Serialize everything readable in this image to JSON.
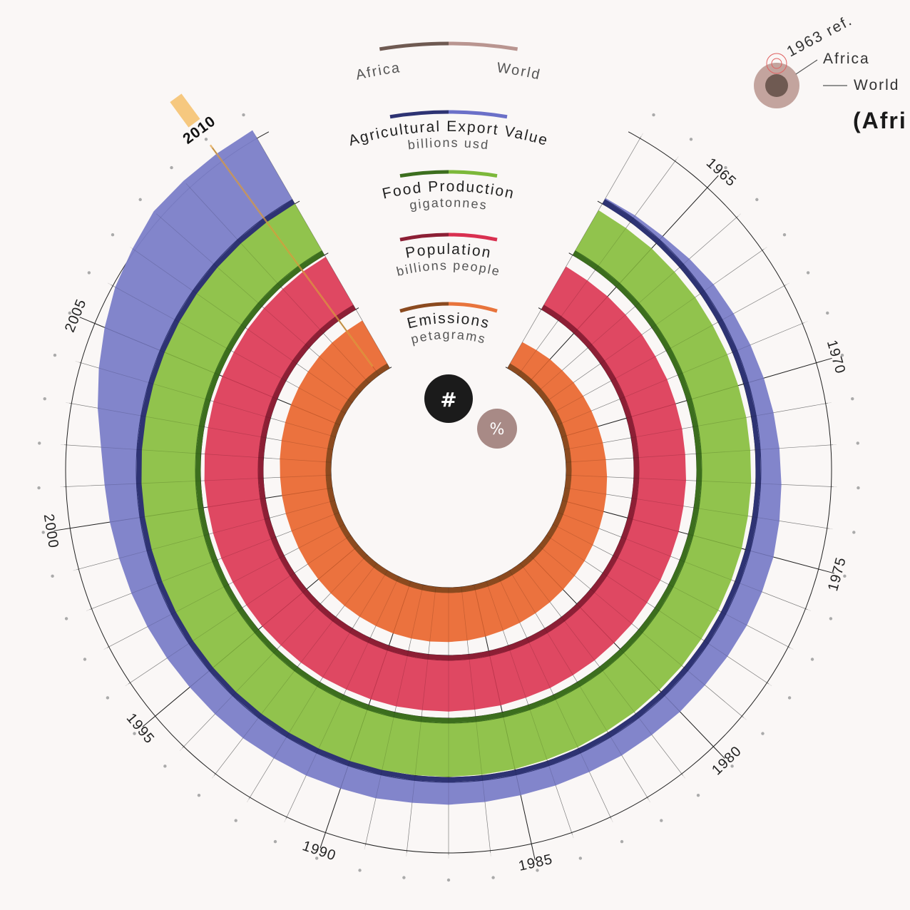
{
  "legend": {
    "left": "Africa",
    "right": "World",
    "left_color": "#6f5a52",
    "right_color": "#b99590"
  },
  "reference": {
    "label": "1963 ref.",
    "africa": "Africa",
    "world": "World",
    "title": "(Afri"
  },
  "buttons": {
    "absolute": "#",
    "percent": "%"
  },
  "highlight_year": "2010",
  "chart_data": {
    "type": "radial-area",
    "years": [
      1963,
      1964,
      1965,
      1966,
      1967,
      1968,
      1969,
      1970,
      1971,
      1972,
      1973,
      1974,
      1975,
      1976,
      1977,
      1978,
      1979,
      1980,
      1981,
      1982,
      1983,
      1984,
      1985,
      1986,
      1987,
      1988,
      1989,
      1990,
      1991,
      1992,
      1993,
      1994,
      1995,
      1996,
      1997,
      1998,
      1999,
      2000,
      2001,
      2002,
      2003,
      2004,
      2005,
      2006,
      2007,
      2008,
      2009,
      2010,
      2011
    ],
    "year_labels": [
      "1965",
      "1970",
      "1975",
      "1980",
      "1985",
      "1990",
      "1995",
      "2000",
      "2005",
      "2010"
    ],
    "series": [
      {
        "name": "Emissions",
        "unit": "petagrams",
        "color": "#ea6a34",
        "dark": "#8b4a1f",
        "light": "#e8743c",
        "values": [
          0.5,
          0.52,
          0.55,
          0.57,
          0.6,
          0.62,
          0.64,
          0.66,
          0.68,
          0.7,
          0.72,
          0.74,
          0.76,
          0.78,
          0.8,
          0.82,
          0.84,
          0.86,
          0.88,
          0.9,
          0.92,
          0.94,
          0.96,
          0.98,
          0.99,
          1.0,
          1.0,
          1.0,
          0.99,
          0.98,
          0.97,
          0.96,
          0.95,
          0.94,
          0.93,
          0.92,
          0.92,
          0.92,
          0.92,
          0.93,
          0.94,
          0.95,
          0.96,
          0.97,
          0.98,
          0.99,
          1.0,
          1.0,
          1.0
        ]
      },
      {
        "name": "Population",
        "unit": "billions people",
        "color": "#dd3e5a",
        "dark": "#8c1f35",
        "light": "#d93050",
        "values": [
          0.8,
          0.8,
          0.81,
          0.81,
          0.82,
          0.82,
          0.83,
          0.83,
          0.84,
          0.84,
          0.85,
          0.85,
          0.86,
          0.86,
          0.87,
          0.87,
          0.88,
          0.88,
          0.89,
          0.89,
          0.9,
          0.9,
          0.91,
          0.91,
          0.92,
          0.92,
          0.93,
          0.93,
          0.93,
          0.94,
          0.94,
          0.94,
          0.95,
          0.95,
          0.95,
          0.96,
          0.96,
          0.96,
          0.97,
          0.97,
          0.97,
          0.98,
          0.98,
          0.98,
          0.99,
          0.99,
          0.99,
          1.0,
          1.0
        ]
      },
      {
        "name": "Food Production",
        "unit": "gigatonnes",
        "color": "#8bc043",
        "dark": "#3c6e1e",
        "light": "#7cb83a",
        "values": [
          0.8,
          0.8,
          0.81,
          0.81,
          0.82,
          0.82,
          0.83,
          0.83,
          0.84,
          0.84,
          0.85,
          0.85,
          0.86,
          0.86,
          0.87,
          0.87,
          0.88,
          0.88,
          0.89,
          0.89,
          0.9,
          0.9,
          0.91,
          0.91,
          0.92,
          0.92,
          0.93,
          0.93,
          0.93,
          0.94,
          0.94,
          0.94,
          0.95,
          0.95,
          0.95,
          0.96,
          0.96,
          0.96,
          0.97,
          0.97,
          0.97,
          0.98,
          0.98,
          0.98,
          0.99,
          0.99,
          0.99,
          1.0,
          1.0
        ]
      },
      {
        "name": "Agricultural Export Value",
        "unit": "billions usd",
        "color": "#7b7ec8",
        "dark": "#2e3373",
        "light": "#6b70c8",
        "values": [
          0.02,
          0.04,
          0.06,
          0.1,
          0.14,
          0.16,
          0.18,
          0.2,
          0.22,
          0.24,
          0.26,
          0.28,
          0.3,
          0.3,
          0.3,
          0.29,
          0.28,
          0.28,
          0.27,
          0.27,
          0.26,
          0.26,
          0.26,
          0.27,
          0.28,
          0.28,
          0.3,
          0.3,
          0.31,
          0.31,
          0.32,
          0.32,
          0.32,
          0.33,
          0.34,
          0.35,
          0.36,
          0.38,
          0.4,
          0.45,
          0.55,
          0.65,
          0.75,
          0.85,
          0.92,
          1.0,
          1.0,
          1.0,
          1.0
        ]
      }
    ]
  }
}
